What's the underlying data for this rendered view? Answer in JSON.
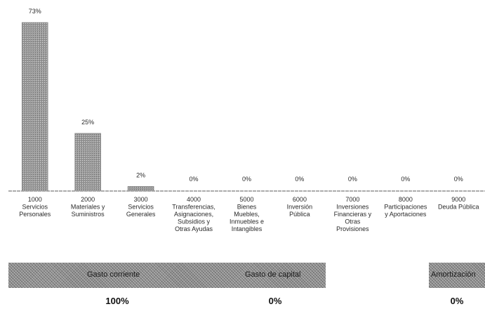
{
  "chart_data": {
    "type": "bar",
    "categories": [
      [
        "1000",
        "Servicios",
        "Personales"
      ],
      [
        "2000",
        "Materiales y",
        "Suministros"
      ],
      [
        "3000",
        "Servicios",
        "Generales"
      ],
      [
        "4000",
        "Transferencias,",
        "Asignaciones,",
        "Subsidios y",
        "Otras Ayudas"
      ],
      [
        "5000",
        "Bienes",
        "Muebles,",
        "Inmuebles e",
        "Intangibles"
      ],
      [
        "6000",
        "Inversión",
        "Pública"
      ],
      [
        "7000",
        "Inversiones",
        "Financieras y",
        "Otras",
        "Provisiones"
      ],
      [
        "8000",
        "Participaciones",
        "y Aportaciones"
      ],
      [
        "9000",
        "Deuda Pública"
      ]
    ],
    "values": [
      73,
      25,
      2,
      0,
      0,
      0,
      0,
      0,
      0
    ],
    "value_labels": [
      "73%",
      "25%",
      "2%",
      "0%",
      "0%",
      "0%",
      "0%",
      "0%",
      "0%"
    ],
    "ylim": [
      0,
      73
    ],
    "grid": false,
    "bar_color": "#9a9a9a"
  },
  "groups": {
    "current_label": "Gasto corriente",
    "capital_label": "Gasto de capital",
    "amortization_label": "Amortización",
    "current_pct": "100%",
    "capital_pct": "0%",
    "amortization_pct": "0%"
  }
}
